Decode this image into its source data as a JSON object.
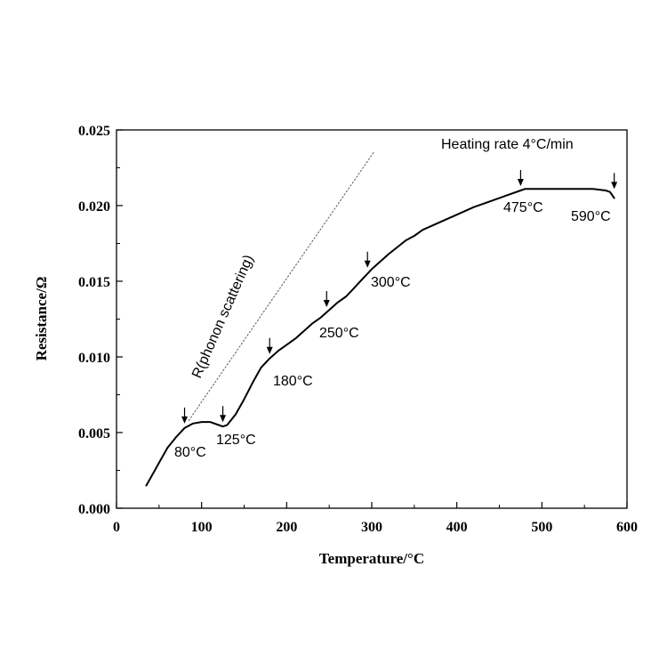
{
  "chart_data": {
    "type": "line",
    "xlabel": "Temperature/°C",
    "ylabel": "Resistance/Ω",
    "xlim": [
      0,
      600
    ],
    "ylim": [
      0,
      0.025
    ],
    "x_ticks": [
      0,
      100,
      200,
      300,
      400,
      500,
      600
    ],
    "y_ticks": [
      0.0,
      0.005,
      0.01,
      0.015,
      0.02,
      0.025
    ],
    "x_tick_labels": [
      "0",
      "100",
      "200",
      "300",
      "400",
      "500",
      "600"
    ],
    "y_tick_labels": [
      "0.000",
      "0.005",
      "0.010",
      "0.015",
      "0.020",
      "0.025"
    ],
    "grid": false,
    "series": [
      {
        "style": "solid",
        "color": "#000000",
        "x": [
          35,
          40,
          50,
          60,
          70,
          80,
          90,
          100,
          110,
          120,
          125,
          130,
          140,
          150,
          160,
          170,
          180,
          190,
          200,
          210,
          220,
          230,
          240,
          250,
          260,
          270,
          280,
          290,
          300,
          320,
          340,
          350,
          360,
          380,
          400,
          420,
          440,
          460,
          475,
          480,
          500,
          520,
          540,
          560,
          575,
          580,
          585
        ],
        "y": [
          0.0015,
          0.002,
          0.003,
          0.004,
          0.0047,
          0.0053,
          0.0056,
          0.0057,
          0.0057,
          0.0055,
          0.0054,
          0.0055,
          0.0062,
          0.0072,
          0.0083,
          0.0093,
          0.0099,
          0.0104,
          0.0108,
          0.0112,
          0.0117,
          0.0122,
          0.0126,
          0.0131,
          0.0136,
          0.014,
          0.0146,
          0.0152,
          0.0158,
          0.0168,
          0.0177,
          0.018,
          0.0184,
          0.0189,
          0.0194,
          0.0199,
          0.0203,
          0.0207,
          0.021,
          0.0211,
          0.0211,
          0.0211,
          0.0211,
          0.0211,
          0.021,
          0.0209,
          0.0205
        ]
      },
      {
        "style": "dotted",
        "color": "#555555",
        "x": [
          85,
          302
        ],
        "y": [
          0.0058,
          0.0235
        ]
      }
    ],
    "annotations": [
      {
        "text": "Heating rate 4°C/min"
      },
      {
        "text": "R(phonon scattering)"
      },
      {
        "text": "80°C",
        "arrow_x": 80,
        "arrow_y": 0.0053
      },
      {
        "text": "125°C",
        "arrow_x": 125,
        "arrow_y": 0.0054
      },
      {
        "text": "180°C",
        "arrow_x": 180,
        "arrow_y": 0.0099
      },
      {
        "text": "250°C",
        "arrow_x": 247,
        "arrow_y": 0.013
      },
      {
        "text": "300°C",
        "arrow_x": 295,
        "arrow_y": 0.0156
      },
      {
        "text": "475°C",
        "arrow_x": 475,
        "arrow_y": 0.021
      },
      {
        "text": "590°C",
        "arrow_x": 585,
        "arrow_y": 0.0208
      }
    ]
  }
}
